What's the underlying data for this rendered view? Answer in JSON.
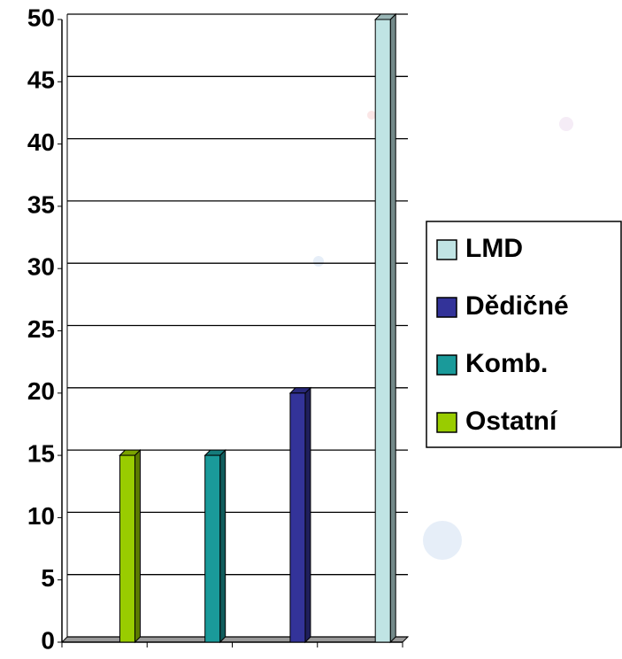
{
  "chart_data": {
    "type": "bar",
    "categories": [
      null,
      null,
      null,
      null
    ],
    "series": [
      {
        "name": "LMD",
        "color": "#c0e4e4",
        "values": [
          null,
          null,
          null,
          50
        ]
      },
      {
        "name": "Dědičné",
        "color": "#333399",
        "values": [
          null,
          null,
          20,
          null
        ]
      },
      {
        "name": "Komb.",
        "color": "#1a9a9a",
        "values": [
          null,
          15,
          null,
          null
        ]
      },
      {
        "name": "Ostatní",
        "color": "#99cc00",
        "values": [
          15,
          null,
          null,
          null
        ]
      }
    ],
    "ylim": [
      0,
      50
    ],
    "yticks": [
      0,
      5,
      10,
      15,
      20,
      25,
      30,
      35,
      40,
      45,
      50
    ],
    "grid": true,
    "legend": "right"
  }
}
